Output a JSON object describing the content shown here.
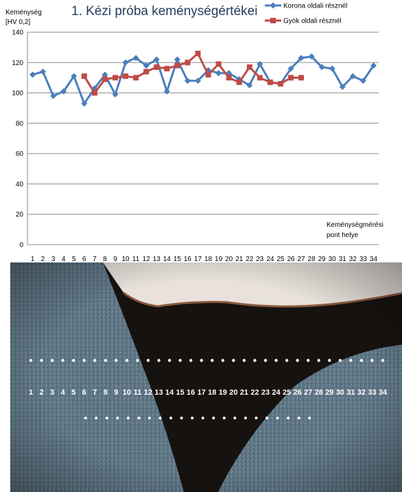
{
  "chart_data": {
    "type": "line",
    "title": "1. Kézi próba keménységértékei",
    "ylabel": [
      "Keménység",
      "[HV 0,2]"
    ],
    "xlabel": [
      "Keménységmérési",
      "pont helye"
    ],
    "ylim": [
      0,
      140
    ],
    "yticks": [
      0,
      20,
      40,
      60,
      80,
      100,
      120,
      140
    ],
    "grid": true,
    "legend_position": "top-right",
    "categories": [
      "1",
      "2",
      "3",
      "4",
      "5",
      "6",
      "7",
      "8",
      "9",
      "10",
      "11",
      "12",
      "13",
      "14",
      "15",
      "16",
      "17",
      "18",
      "19",
      "20",
      "21",
      "22",
      "23",
      "24",
      "25",
      "26",
      "27",
      "28",
      "29",
      "30",
      "31",
      "32",
      "33",
      "34"
    ],
    "series": [
      {
        "name": "Korona oldali résznél",
        "color": "#4a7ebb",
        "marker": "diamond",
        "x": [
          1,
          2,
          3,
          4,
          5,
          6,
          7,
          8,
          9,
          10,
          11,
          12,
          13,
          14,
          15,
          16,
          17,
          18,
          19,
          20,
          21,
          22,
          23,
          24,
          25,
          26,
          27,
          28,
          29,
          30,
          31,
          32,
          33,
          34
        ],
        "values": [
          112,
          114,
          98,
          101,
          111,
          93,
          103,
          112,
          99,
          120,
          123,
          118,
          122,
          101,
          122,
          108,
          108,
          115,
          113,
          113,
          109,
          105,
          119,
          107,
          106,
          116,
          123,
          124,
          117,
          116,
          104,
          111,
          108,
          118
        ]
      },
      {
        "name": "Gyök oldali résznél",
        "color": "#be4b48",
        "marker": "square",
        "x": [
          6,
          7,
          8,
          9,
          10,
          11,
          12,
          13,
          14,
          15,
          16,
          17,
          18,
          19,
          20,
          21,
          22,
          23,
          24,
          25,
          26,
          27
        ],
        "values": [
          111,
          100,
          109,
          110,
          111,
          110,
          114,
          117,
          116,
          118,
          120,
          126,
          112,
          119,
          110,
          107,
          117,
          110,
          107,
          106,
          110,
          110
        ]
      }
    ]
  },
  "photo": {
    "point_labels": [
      "1",
      "2",
      "3",
      "4",
      "5",
      "6",
      "7",
      "8",
      "9",
      "10",
      "11",
      "12",
      "13",
      "14",
      "15",
      "16",
      "17",
      "18",
      "19",
      "20",
      "21",
      "22",
      "23",
      "24",
      "25",
      "26",
      "27",
      "28",
      "29",
      "30",
      "31",
      "32",
      "33",
      "34"
    ],
    "colors": {
      "metal": "#5e7584",
      "cavity": "#161210",
      "label": "#ffffff"
    }
  }
}
